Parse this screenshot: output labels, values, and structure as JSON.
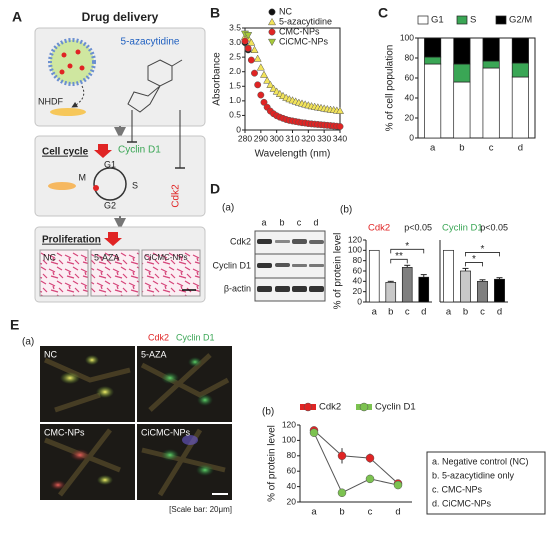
{
  "panel_labels": [
    "A",
    "B",
    "C",
    "D",
    "E"
  ],
  "panel_a": {
    "title": "Drug delivery",
    "drug": "5-azacytidine",
    "cell": "NHDF",
    "cell_cycle": "Cell cycle",
    "cyclin": "Cyclin D1",
    "cdk": "Cdk2",
    "phases": [
      "G1",
      "S",
      "G2",
      "M"
    ],
    "proliferation": "Proliferation",
    "images": [
      "NC",
      "5-AZA",
      "CiCMC-NPs"
    ]
  },
  "panel_d": {
    "sub_a": "(a)",
    "sub_b": "(b)",
    "lanes": [
      "a",
      "b",
      "c",
      "d"
    ],
    "bands": [
      "Cdk2",
      "Cyclin D1",
      "β-actin"
    ]
  },
  "panel_e": {
    "sub_a": "(a)",
    "sub_b": "(b)",
    "stain_labels": [
      "Cdk2",
      "Cyclin D1"
    ],
    "images": [
      "NC",
      "5-AZA",
      "CMC-NPs",
      "CiCMC-NPs"
    ],
    "scale": "[Scale bar: 20μm]",
    "key": [
      "a. Negative control (NC)",
      "b. 5-azacytidine only",
      "c. CMC-NPs",
      "d. CiCMC-NPs"
    ]
  },
  "chart_data": [
    {
      "type": "line",
      "connect": false,
      "xlabel": "Wavelength (nm)",
      "ylabel": "Absorbance",
      "legend": "upper right",
      "x": [
        280,
        282,
        284,
        286,
        288,
        290,
        292,
        294,
        296,
        298,
        300,
        302,
        304,
        306,
        308,
        310,
        312,
        314,
        316,
        318,
        320,
        322,
        324,
        326,
        328,
        330,
        332,
        334,
        336,
        338,
        340
      ],
      "xlim": [
        280,
        340
      ],
      "xticks": [
        280,
        290,
        300,
        310,
        320,
        330,
        340
      ],
      "ylim": [
        0,
        3.5
      ],
      "yticks": [
        0,
        0.5,
        {
          "value": 1,
          "label": "1.0"
        },
        1.5,
        {
          "value": 2,
          "label": "2.0"
        },
        2.5,
        {
          "value": 3,
          "label": "3.0"
        },
        3.5
      ],
      "series": [
        {
          "name": "NC",
          "color": "#111111",
          "marker": "circle",
          "values": [
            3.0,
            2.75,
            null,
            null,
            null,
            null,
            null,
            null,
            null,
            null,
            null,
            null,
            null,
            null,
            null,
            null,
            null,
            null,
            null,
            null,
            null,
            null,
            null,
            null,
            null,
            null,
            null,
            null,
            null,
            null,
            null
          ]
        },
        {
          "name": "5-azacytidine",
          "color": "#f2e35a",
          "marker": "triangle",
          "values": [
            3.2,
            3.15,
            3.0,
            2.75,
            2.45,
            2.15,
            1.9,
            1.7,
            1.55,
            1.42,
            1.32,
            1.24,
            1.17,
            1.11,
            1.06,
            1.02,
            0.98,
            0.94,
            0.91,
            0.88,
            0.85,
            0.82,
            0.8,
            0.78,
            0.76,
            0.74,
            0.72,
            0.7,
            0.69,
            0.67,
            0.66
          ]
        },
        {
          "name": "CMC-NPs",
          "color": "#e02424",
          "marker": "circle",
          "values": [
            3.05,
            2.8,
            2.4,
            1.95,
            1.55,
            1.2,
            0.95,
            0.78,
            0.65,
            0.56,
            0.49,
            0.44,
            0.4,
            0.36,
            0.33,
            0.31,
            0.29,
            0.27,
            0.25,
            0.24,
            0.22,
            0.21,
            0.2,
            0.19,
            0.18,
            0.17,
            0.16,
            0.15,
            0.14,
            0.13,
            0.12
          ]
        },
        {
          "name": "CiCMC-NPs",
          "color": "#a6c93a",
          "marker": "triangle-down",
          "values": [
            3.3,
            3.25,
            null,
            null,
            null,
            null,
            null,
            null,
            null,
            null,
            null,
            null,
            null,
            null,
            null,
            null,
            null,
            null,
            null,
            null,
            null,
            null,
            null,
            null,
            null,
            null,
            null,
            null,
            null,
            null,
            null
          ]
        }
      ]
    },
    {
      "type": "stacked_bar",
      "ylabel": "% of cell population",
      "legend": "top",
      "categories": [
        "a",
        "b",
        "c",
        "d"
      ],
      "ylim": [
        0,
        100
      ],
      "yticks": [
        0,
        20,
        40,
        60,
        80,
        100
      ],
      "series": [
        {
          "name": "G1",
          "color": "#ffffff",
          "values": [
            74,
            56,
            70,
            61
          ]
        },
        {
          "name": "S",
          "color": "#3aa655",
          "values": [
            7,
            18,
            7,
            14
          ]
        },
        {
          "name": "G2/M",
          "color": "#000000",
          "values": [
            19,
            26,
            23,
            25
          ]
        }
      ]
    },
    {
      "type": "bar",
      "title": "Cdk2",
      "title_color": "#e02424",
      "note": "p<0.05",
      "ylabel": "% of protein level",
      "categories": [
        "a",
        "b",
        "c",
        "d"
      ],
      "values": [
        100,
        38,
        67,
        48
      ],
      "errors": [
        0,
        2,
        4,
        5
      ],
      "colors": [
        "#ffffff",
        "#c8c8c8",
        "#7f7f7f",
        "#000000"
      ],
      "annotations": [
        "**",
        "*"
      ],
      "ylim": [
        0,
        120
      ],
      "yticks": [
        0,
        20,
        40,
        60,
        80,
        100,
        120
      ]
    },
    {
      "type": "bar",
      "title": "Cyclin D1",
      "title_color": "#3aa655",
      "note": "p<0.05",
      "categories": [
        "a",
        "b",
        "c",
        "d"
      ],
      "values": [
        100,
        60,
        40,
        44
      ],
      "errors": [
        0,
        5,
        3,
        3
      ],
      "colors": [
        "#ffffff",
        "#c8c8c8",
        "#7f7f7f",
        "#000000"
      ],
      "annotations": [
        "*",
        "*"
      ],
      "ylim": [
        0,
        120
      ]
    },
    {
      "type": "line",
      "connect": true,
      "ylabel": "% of protein level",
      "legend": "top",
      "categories": [
        "a",
        "b",
        "c",
        "d"
      ],
      "ylim": [
        20,
        120
      ],
      "yticks": [
        20,
        40,
        60,
        80,
        100,
        120
      ],
      "series": [
        {
          "name": "Cdk2",
          "color": "#e02424",
          "marker": "circle",
          "values": [
            113,
            80,
            77,
            44
          ],
          "errors": [
            3,
            10,
            6,
            3
          ]
        },
        {
          "name": "Cyclin D1",
          "color": "#7cc250",
          "marker": "circle",
          "values": [
            110,
            32,
            50,
            42
          ],
          "errors": [
            3,
            3,
            3,
            3
          ]
        }
      ]
    }
  ]
}
